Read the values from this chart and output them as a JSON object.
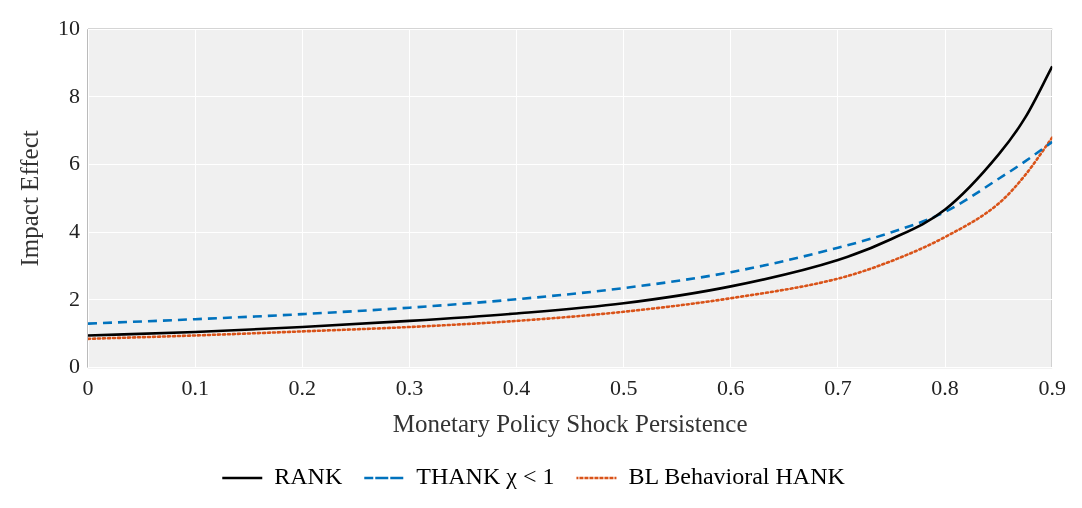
{
  "chart_data": {
    "type": "line",
    "xlabel": "Monetary Policy Shock Persistence",
    "ylabel": "Impact Effect",
    "x": [
      0,
      0.1,
      0.2,
      0.3,
      0.4,
      0.5,
      0.6,
      0.7,
      0.75,
      0.8,
      0.85,
      0.875,
      0.9
    ],
    "series": [
      {
        "name": "RANK",
        "color": "#000000",
        "line_style": "solid",
        "values": [
          0.95,
          1.05,
          1.2,
          1.38,
          1.6,
          1.9,
          2.4,
          3.18,
          3.8,
          4.67,
          6.3,
          7.4,
          8.9
        ]
      },
      {
        "name": "THANK χ < 1",
        "color": "#0072bd",
        "line_style": "dashed",
        "values": [
          1.3,
          1.43,
          1.58,
          1.77,
          2.02,
          2.35,
          2.82,
          3.54,
          4.0,
          4.6,
          5.58,
          6.1,
          6.67
        ]
      },
      {
        "name": "BL Behavioral HANK",
        "color": "#d95319",
        "line_style": "dotted",
        "values": [
          0.85,
          0.95,
          1.07,
          1.2,
          1.38,
          1.65,
          2.05,
          2.63,
          3.15,
          3.86,
          4.85,
          5.7,
          6.8
        ]
      }
    ],
    "xlim": [
      0,
      0.9
    ],
    "xticks": [
      0,
      0.1,
      0.2,
      0.3,
      0.4,
      0.5,
      0.6,
      0.7,
      0.8,
      0.9
    ],
    "ylim": [
      0,
      10
    ],
    "yticks": [
      0,
      2,
      4,
      6,
      8,
      10
    ],
    "grid": true,
    "legend": "bottom",
    "marker": "none"
  }
}
